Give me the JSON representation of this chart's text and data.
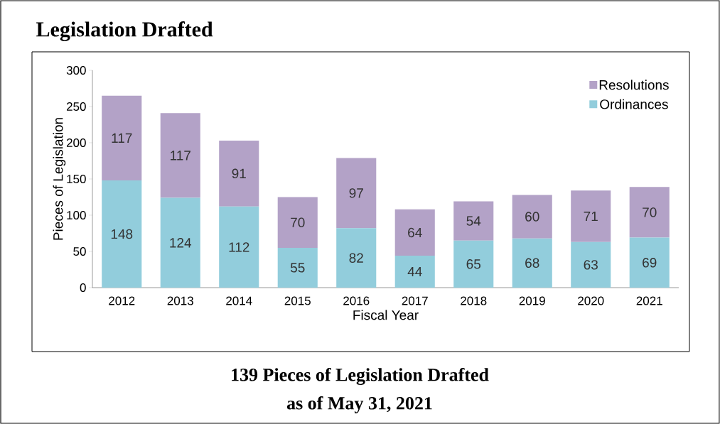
{
  "chart_data": {
    "type": "bar",
    "title": "Legislation Drafted",
    "xlabel": "Fiscal Year",
    "ylabel": "Pieces of Legislation",
    "annotations": [
      "139 Pieces of Legislation Drafted",
      "as of May 31, 2021"
    ],
    "categories": [
      "2012",
      "2013",
      "2014",
      "2015",
      "2016",
      "2017",
      "2018",
      "2019",
      "2020",
      "2021"
    ],
    "series": [
      {
        "name": "Ordinances",
        "color": "#92cddc",
        "values": [
          148,
          124,
          112,
          55,
          82,
          44,
          65,
          68,
          63,
          69
        ]
      },
      {
        "name": "Resolutions",
        "color": "#b3a2c7",
        "values": [
          117,
          117,
          91,
          70,
          97,
          64,
          54,
          60,
          71,
          70
        ]
      }
    ],
    "stacked": true,
    "data_labels": true,
    "ylim": [
      0,
      300
    ],
    "yticks": [
      0,
      50,
      100,
      150,
      200,
      250,
      300
    ],
    "grid": false,
    "legend": "top right"
  }
}
